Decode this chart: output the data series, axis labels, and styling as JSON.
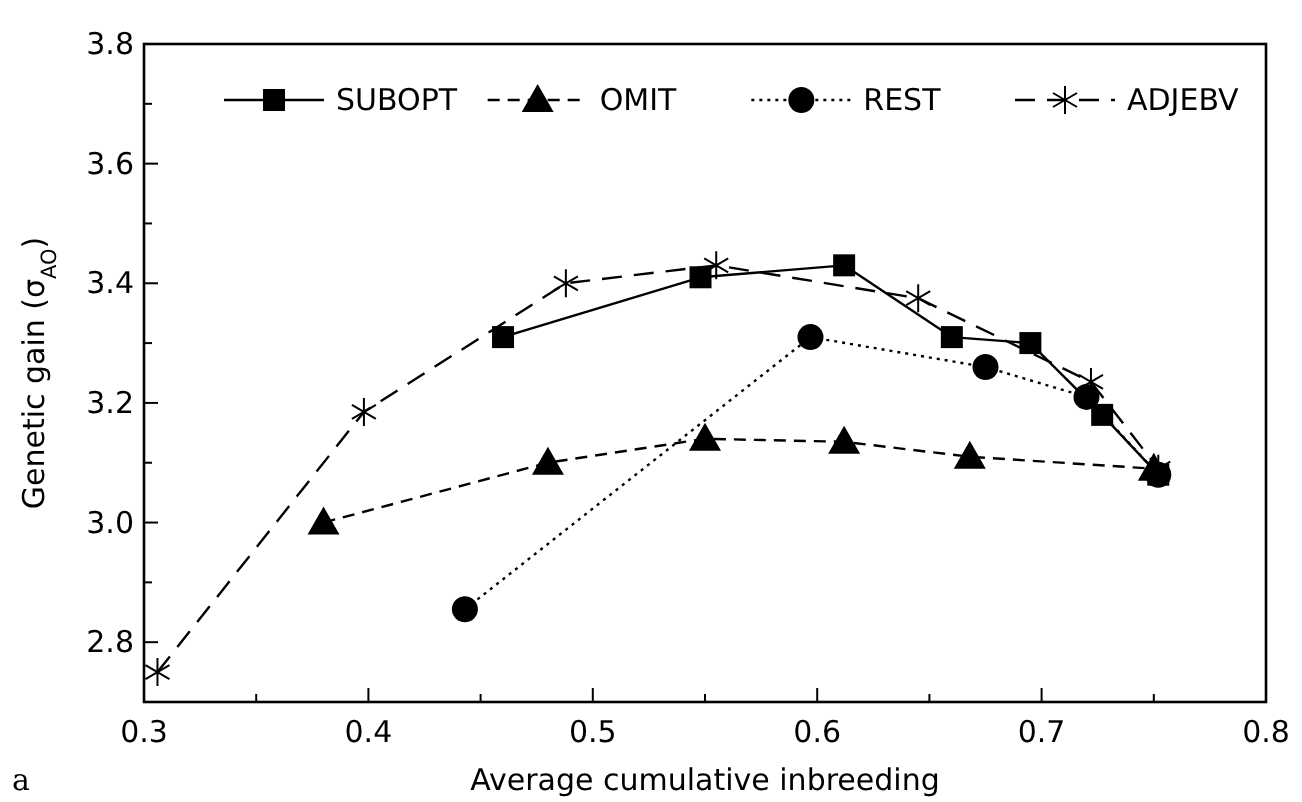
{
  "chart_data": {
    "type": "line",
    "xlabel": "Average cumulative inbreeding",
    "ylabel": "Genetic gain (σ$_{AO}$)",
    "annotations": [
      "a"
    ],
    "xlim": [
      0.3,
      0.8
    ],
    "xticks": [
      0.3,
      {
        "value": 0.35,
        "label": null
      },
      0.4,
      {
        "value": 0.45,
        "label": null
      },
      0.5,
      {
        "value": 0.55,
        "label": null
      },
      0.6,
      {
        "value": 0.65,
        "label": null
      },
      0.7,
      {
        "value": 0.75,
        "label": null
      },
      0.8
    ],
    "ylim": [
      2.7,
      3.8
    ],
    "yticks": [
      2.8,
      {
        "value": 2.9,
        "label": null
      },
      {
        "value": 3,
        "label": "3.0"
      },
      {
        "value": 3.1,
        "label": null
      },
      3.2,
      {
        "value": 3.3,
        "label": null
      },
      3.4,
      {
        "value": 3.5,
        "label": null
      },
      3.6,
      {
        "value": 3.7,
        "label": null
      },
      3.8
    ],
    "grid": false,
    "legend": "top",
    "series": [
      {
        "name": "SUBOPT",
        "color": "#000000",
        "marker": "square",
        "line_style": "solid",
        "x": [
          0.46,
          0.548,
          0.612,
          0.66,
          0.695,
          0.727,
          0.752
        ],
        "values": [
          3.31,
          3.41,
          3.43,
          3.31,
          3.3,
          3.18,
          3.08
        ]
      },
      {
        "name": "OMIT",
        "color": "#000000",
        "marker": "triangle",
        "line_style": "dashed",
        "x": [
          0.38,
          0.48,
          0.55,
          0.612,
          0.668,
          0.75
        ],
        "values": [
          3.0,
          3.1,
          3.14,
          3.135,
          3.11,
          3.09
        ]
      },
      {
        "name": "REST",
        "color": "#000000",
        "marker": "circle",
        "line_style": "dotted",
        "x": [
          0.443,
          0.597,
          0.675,
          0.72,
          0.752
        ],
        "values": [
          2.855,
          3.31,
          3.26,
          3.21,
          3.08
        ]
      },
      {
        "name": "ADJEBV",
        "color": "#000000",
        "marker": "cross",
        "line_style": "dashed",
        "x": [
          0.306,
          0.398,
          0.488,
          0.555,
          0.645,
          0.722,
          0.752
        ],
        "values": [
          2.75,
          3.185,
          3.4,
          3.43,
          3.375,
          3.235,
          3.09
        ]
      }
    ]
  }
}
